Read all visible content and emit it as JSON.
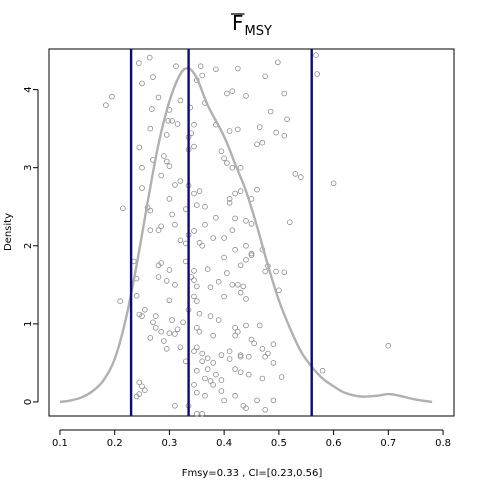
{
  "chart_data": {
    "type": "scatter",
    "title": "F",
    "title_subscript": "MSY",
    "title_overline": true,
    "xlabel": "Fmsy=0.33 , CI=[0.23,0.56]",
    "ylabel": "Density",
    "xlim": [
      0.08,
      0.82
    ],
    "ylim": [
      -0.18,
      4.52
    ],
    "x_ticks": [
      0.1,
      0.2,
      0.3,
      0.4,
      0.5,
      0.6,
      0.7,
      0.8
    ],
    "x_tick_labels": [
      "0.1",
      "0.2",
      "0.3",
      "0.4",
      "0.5",
      "0.6",
      "0.7",
      "0.8"
    ],
    "y_ticks": [
      0,
      1,
      2,
      3,
      4
    ],
    "y_tick_labels": [
      "0",
      "1",
      "2",
      "3",
      "4"
    ],
    "grid": false,
    "vlines": [
      0.23,
      0.335,
      0.56
    ],
    "colors": {
      "points": "#8c8c8c",
      "density": "#b0b0b0",
      "vlines": "#0a0a7a"
    },
    "density_curve": [
      [
        0.1,
        0.0
      ],
      [
        0.12,
        0.02
      ],
      [
        0.14,
        0.06
      ],
      [
        0.16,
        0.14
      ],
      [
        0.18,
        0.28
      ],
      [
        0.2,
        0.55
      ],
      [
        0.22,
        1.05
      ],
      [
        0.24,
        1.75
      ],
      [
        0.26,
        2.55
      ],
      [
        0.28,
        3.3
      ],
      [
        0.3,
        3.85
      ],
      [
        0.32,
        4.2
      ],
      [
        0.335,
        4.27
      ],
      [
        0.35,
        4.15
      ],
      [
        0.37,
        3.8
      ],
      [
        0.4,
        3.4
      ],
      [
        0.42,
        3.05
      ],
      [
        0.44,
        2.7
      ],
      [
        0.46,
        2.25
      ],
      [
        0.48,
        1.75
      ],
      [
        0.5,
        1.3
      ],
      [
        0.52,
        0.95
      ],
      [
        0.54,
        0.65
      ],
      [
        0.56,
        0.45
      ],
      [
        0.58,
        0.3
      ],
      [
        0.6,
        0.2
      ],
      [
        0.62,
        0.12
      ],
      [
        0.65,
        0.07
      ],
      [
        0.68,
        0.08
      ],
      [
        0.7,
        0.1
      ],
      [
        0.72,
        0.08
      ],
      [
        0.75,
        0.03
      ],
      [
        0.78,
        0.0
      ]
    ],
    "points": [
      [
        0.244,
        4.34
      ],
      [
        0.264,
        4.41
      ],
      [
        0.312,
        4.3
      ],
      [
        0.357,
        4.3
      ],
      [
        0.498,
        4.35
      ],
      [
        0.568,
        4.44
      ],
      [
        0.25,
        4.08
      ],
      [
        0.27,
        4.16
      ],
      [
        0.36,
        4.18
      ],
      [
        0.385,
        4.26
      ],
      [
        0.425,
        4.27
      ],
      [
        0.475,
        4.17
      ],
      [
        0.57,
        4.2
      ],
      [
        0.184,
        3.8
      ],
      [
        0.195,
        3.91
      ],
      [
        0.28,
        3.9
      ],
      [
        0.32,
        3.86
      ],
      [
        0.365,
        3.83
      ],
      [
        0.405,
        3.95
      ],
      [
        0.415,
        3.98
      ],
      [
        0.44,
        3.92
      ],
      [
        0.51,
        3.95
      ],
      [
        0.35,
        4.12
      ],
      [
        0.3,
        3.74
      ],
      [
        0.338,
        3.77
      ],
      [
        0.485,
        3.72
      ],
      [
        0.515,
        3.62
      ],
      [
        0.268,
        3.75
      ],
      [
        0.298,
        3.6
      ],
      [
        0.305,
        3.6
      ],
      [
        0.315,
        3.56
      ],
      [
        0.345,
        3.55
      ],
      [
        0.34,
        3.44
      ],
      [
        0.295,
        3.42
      ],
      [
        0.265,
        3.5
      ],
      [
        0.335,
        3.39
      ],
      [
        0.385,
        3.55
      ],
      [
        0.41,
        3.47
      ],
      [
        0.425,
        3.49
      ],
      [
        0.465,
        3.52
      ],
      [
        0.495,
        3.45
      ],
      [
        0.51,
        3.41
      ],
      [
        0.245,
        3.26
      ],
      [
        0.29,
        3.15
      ],
      [
        0.295,
        3.08
      ],
      [
        0.3,
        3.02
      ],
      [
        0.335,
        3.23
      ],
      [
        0.345,
        3.27
      ],
      [
        0.395,
        3.21
      ],
      [
        0.4,
        3.12
      ],
      [
        0.405,
        3.06
      ],
      [
        0.415,
        3.0
      ],
      [
        0.43,
        3.0
      ],
      [
        0.46,
        3.3
      ],
      [
        0.47,
        3.32
      ],
      [
        0.25,
        3.0
      ],
      [
        0.27,
        3.1
      ],
      [
        0.285,
        2.9
      ],
      [
        0.31,
        2.78
      ],
      [
        0.32,
        2.83
      ],
      [
        0.335,
        2.77
      ],
      [
        0.345,
        2.67
      ],
      [
        0.355,
        2.7
      ],
      [
        0.41,
        2.55
      ],
      [
        0.42,
        2.67
      ],
      [
        0.43,
        2.7
      ],
      [
        0.45,
        2.6
      ],
      [
        0.46,
        2.72
      ],
      [
        0.53,
        2.92
      ],
      [
        0.54,
        2.88
      ],
      [
        0.6,
        2.8
      ],
      [
        0.25,
        2.74
      ],
      [
        0.26,
        2.49
      ],
      [
        0.265,
        2.45
      ],
      [
        0.3,
        2.6
      ],
      [
        0.305,
        2.4
      ],
      [
        0.33,
        2.47
      ],
      [
        0.35,
        2.52
      ],
      [
        0.365,
        2.5
      ],
      [
        0.385,
        2.36
      ],
      [
        0.41,
        2.6
      ],
      [
        0.42,
        2.35
      ],
      [
        0.44,
        2.32
      ],
      [
        0.45,
        2.28
      ],
      [
        0.52,
        2.3
      ],
      [
        0.215,
        2.48
      ],
      [
        0.265,
        2.2
      ],
      [
        0.28,
        2.2
      ],
      [
        0.285,
        2.25
      ],
      [
        0.31,
        2.27
      ],
      [
        0.32,
        2.07
      ],
      [
        0.335,
        2.14
      ],
      [
        0.345,
        2.19
      ],
      [
        0.365,
        2.27
      ],
      [
        0.38,
        2.1
      ],
      [
        0.4,
        2.1
      ],
      [
        0.415,
        2.2
      ],
      [
        0.42,
        1.95
      ],
      [
        0.44,
        2.0
      ],
      [
        0.45,
        1.88
      ],
      [
        0.47,
        1.95
      ],
      [
        0.48,
        1.74
      ],
      [
        0.495,
        1.67
      ],
      [
        0.33,
        2.03
      ],
      [
        0.355,
        2.04
      ],
      [
        0.36,
        2.0
      ],
      [
        0.235,
        1.8
      ],
      [
        0.28,
        1.75
      ],
      [
        0.285,
        1.78
      ],
      [
        0.3,
        1.69
      ],
      [
        0.33,
        1.8
      ],
      [
        0.345,
        1.68
      ],
      [
        0.37,
        1.7
      ],
      [
        0.4,
        1.85
      ],
      [
        0.405,
        1.65
      ],
      [
        0.43,
        1.75
      ],
      [
        0.44,
        1.82
      ],
      [
        0.45,
        1.9
      ],
      [
        0.475,
        1.67
      ],
      [
        0.51,
        1.66
      ],
      [
        0.24,
        1.58
      ],
      [
        0.28,
        1.6
      ],
      [
        0.295,
        1.55
      ],
      [
        0.31,
        1.5
      ],
      [
        0.34,
        1.6
      ],
      [
        0.345,
        1.56
      ],
      [
        0.35,
        1.48
      ],
      [
        0.375,
        1.47
      ],
      [
        0.39,
        1.54
      ],
      [
        0.415,
        1.5
      ],
      [
        0.425,
        1.5
      ],
      [
        0.435,
        1.48
      ],
      [
        0.21,
        1.29
      ],
      [
        0.24,
        1.36
      ],
      [
        0.255,
        1.18
      ],
      [
        0.3,
        1.3
      ],
      [
        0.345,
        1.35
      ],
      [
        0.35,
        1.29
      ],
      [
        0.4,
        1.35
      ],
      [
        0.43,
        1.4
      ],
      [
        0.44,
        1.32
      ],
      [
        0.5,
        1.43
      ],
      [
        0.245,
        1.12
      ],
      [
        0.25,
        1.1
      ],
      [
        0.27,
        1.02
      ],
      [
        0.275,
        1.1
      ],
      [
        0.305,
        1.05
      ],
      [
        0.325,
        1.02
      ],
      [
        0.335,
        1.18
      ],
      [
        0.355,
        1.13
      ],
      [
        0.375,
        1.1
      ],
      [
        0.39,
        1.05
      ],
      [
        0.42,
        0.95
      ],
      [
        0.44,
        0.98
      ],
      [
        0.465,
        0.98
      ],
      [
        0.275,
        0.95
      ],
      [
        0.285,
        0.9
      ],
      [
        0.3,
        0.88
      ],
      [
        0.31,
        0.87
      ],
      [
        0.315,
        0.93
      ],
      [
        0.35,
        0.95
      ],
      [
        0.355,
        0.9
      ],
      [
        0.38,
        0.85
      ],
      [
        0.42,
        0.85
      ],
      [
        0.425,
        0.9
      ],
      [
        0.45,
        0.8
      ],
      [
        0.455,
        0.75
      ],
      [
        0.49,
        0.74
      ],
      [
        0.7,
        0.72
      ],
      [
        0.265,
        0.82
      ],
      [
        0.29,
        0.78
      ],
      [
        0.295,
        0.68
      ],
      [
        0.32,
        0.7
      ],
      [
        0.345,
        0.65
      ],
      [
        0.35,
        0.7
      ],
      [
        0.36,
        0.62
      ],
      [
        0.395,
        0.6
      ],
      [
        0.41,
        0.65
      ],
      [
        0.43,
        0.6
      ],
      [
        0.47,
        0.68
      ],
      [
        0.48,
        0.62
      ],
      [
        0.33,
        0.52
      ],
      [
        0.36,
        0.52
      ],
      [
        0.37,
        0.56
      ],
      [
        0.38,
        0.5
      ],
      [
        0.41,
        0.55
      ],
      [
        0.43,
        0.58
      ],
      [
        0.445,
        0.58
      ],
      [
        0.475,
        0.58
      ],
      [
        0.49,
        0.5
      ],
      [
        0.58,
        0.4
      ],
      [
        0.35,
        0.4
      ],
      [
        0.37,
        0.42
      ],
      [
        0.385,
        0.35
      ],
      [
        0.42,
        0.42
      ],
      [
        0.43,
        0.38
      ],
      [
        0.445,
        0.35
      ],
      [
        0.47,
        0.3
      ],
      [
        0.505,
        0.32
      ],
      [
        0.245,
        0.25
      ],
      [
        0.25,
        0.2
      ],
      [
        0.255,
        0.15
      ],
      [
        0.245,
        0.1
      ],
      [
        0.24,
        0.07
      ],
      [
        0.345,
        0.22
      ],
      [
        0.365,
        0.3
      ],
      [
        0.375,
        0.27
      ],
      [
        0.38,
        0.22
      ],
      [
        0.395,
        0.28
      ],
      [
        0.35,
        0.12
      ],
      [
        0.365,
        0.08
      ],
      [
        0.395,
        0.14
      ],
      [
        0.4,
        0.02
      ],
      [
        0.42,
        0.08
      ],
      [
        0.435,
        -0.05
      ],
      [
        0.44,
        -0.08
      ],
      [
        0.46,
        0.02
      ],
      [
        0.475,
        -0.1
      ],
      [
        0.49,
        0.02
      ],
      [
        0.31,
        -0.05
      ],
      [
        0.35,
        -0.15
      ],
      [
        0.36,
        -0.15
      ],
      [
        0.335,
        -0.05
      ]
    ]
  }
}
